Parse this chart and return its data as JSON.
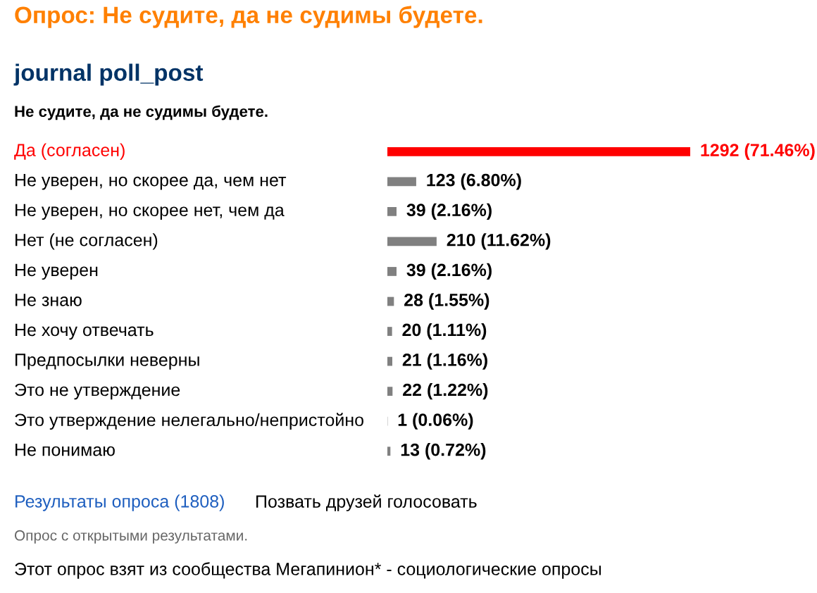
{
  "chart_data": {
    "type": "bar",
    "orientation": "horizontal",
    "title": "Опрос: Не судите, да не судимы будете.",
    "subtitle": "journal poll_post",
    "categories": [
      "Да (согласен)",
      "Не уверен, но скорее да, чем нет",
      "Не уверен, но скорее нет, чем да",
      "Нет (не согласен)",
      "Не уверен",
      "Не знаю",
      "Не хочу отвечать",
      "Предпосылки неверны",
      "Это не утверждение",
      "Это утверждение нелегально/непристойно",
      "Не понимаю"
    ],
    "values": [
      1292,
      123,
      39,
      210,
      39,
      28,
      20,
      21,
      22,
      1,
      13
    ],
    "value_labels": [
      "1292 (71.46%)",
      "123 (6.80%)",
      "39 (2.16%)",
      "210 (11.62%)",
      "39 (2.16%)",
      "28 (1.55%)",
      "20 (1.11%)",
      "21 (1.16%)",
      "22 (1.22%)",
      "1 (0.06%)",
      "13 (0.72%)"
    ],
    "colors": [
      "#ff0000",
      "#808080",
      "#808080",
      "#808080",
      "#808080",
      "#808080",
      "#808080",
      "#808080",
      "#808080",
      "#808080",
      "#808080"
    ],
    "annotations": [
      "Не судите, да не судимы будете.",
      "Результаты опроса (1808)",
      "Позвать друзей голосовать",
      "Опрос с открытыми результатами.",
      "Этот опрос взят из сообщества Мегапинион* - социологические опросы"
    ]
  }
}
